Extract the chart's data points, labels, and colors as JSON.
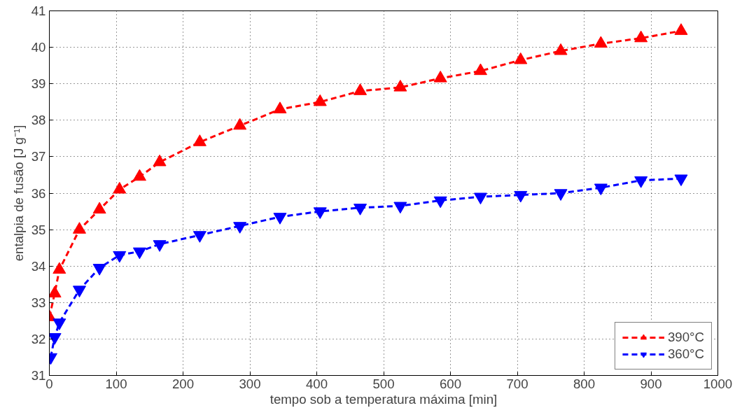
{
  "chart_data": {
    "type": "line",
    "xlabel": "tempo sob a temperatura máxima [min]",
    "ylabel": "entalpia de fusão [J g⁻¹]",
    "xlim": [
      0,
      1000
    ],
    "ylim": [
      31,
      41
    ],
    "xticks": [
      0,
      100,
      200,
      300,
      400,
      500,
      600,
      700,
      800,
      900,
      1000
    ],
    "yticks": [
      31,
      32,
      33,
      34,
      35,
      36,
      37,
      38,
      39,
      40,
      41
    ],
    "grid": true,
    "legend": "bottom right",
    "line_style": "dashed",
    "series": [
      {
        "name": "390°C",
        "color": "#ff0000",
        "marker": "triangle",
        "x": [
          0,
          8,
          15,
          45,
          75,
          105,
          135,
          165,
          225,
          285,
          345,
          405,
          465,
          525,
          585,
          645,
          705,
          765,
          825,
          885,
          945
        ],
        "values": [
          32.6,
          33.25,
          33.9,
          35.0,
          35.55,
          36.1,
          36.45,
          36.85,
          37.4,
          37.85,
          38.3,
          38.5,
          38.8,
          38.9,
          39.15,
          39.35,
          39.65,
          39.9,
          40.1,
          40.25,
          40.45
        ]
      },
      {
        "name": "360°C",
        "color": "#0000ff",
        "marker": "triangle_down",
        "x": [
          2,
          8,
          15,
          45,
          75,
          105,
          135,
          165,
          225,
          285,
          345,
          405,
          465,
          525,
          585,
          645,
          705,
          765,
          825,
          885,
          945
        ],
        "values": [
          31.5,
          32.05,
          32.45,
          33.35,
          33.95,
          34.3,
          34.4,
          34.6,
          34.85,
          35.1,
          35.35,
          35.5,
          35.6,
          35.65,
          35.8,
          35.9,
          35.95,
          36.0,
          36.15,
          36.35,
          36.4
        ]
      }
    ]
  }
}
